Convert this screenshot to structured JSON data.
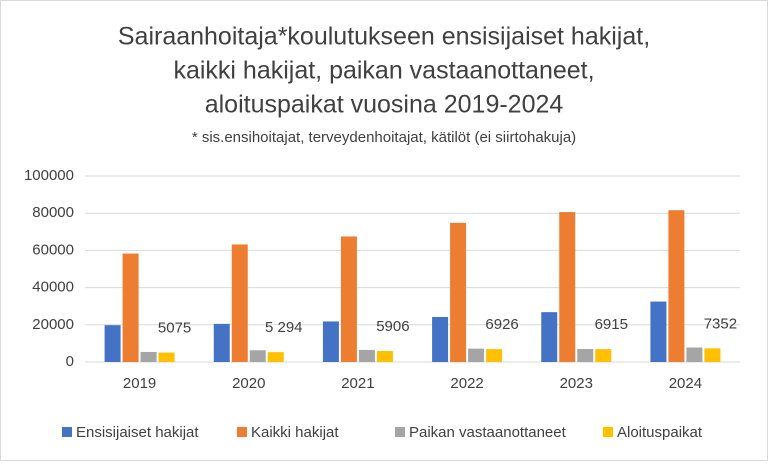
{
  "chart_data": {
    "type": "bar",
    "title": [
      "Sairaanhoitaja*koulutukseen ensisijaiset hakijat,",
      "kaikki hakijat,  paikan vastaanottaneet,",
      "aloituspaikat vuosina 2019-2024"
    ],
    "subtitle": "* sis.ensihoitajat, terveydenhoitajat, kätilöt (ei siirtohakuja)",
    "categories": [
      "2019",
      "2020",
      "2021",
      "2022",
      "2023",
      "2024"
    ],
    "series": [
      {
        "name": "Ensisijaiset hakijat",
        "color": "#4472c4",
        "values": [
          19800,
          20500,
          21800,
          24200,
          26800,
          32500
        ]
      },
      {
        "name": "Kaikki hakijat",
        "color": "#ed7d31",
        "values": [
          58300,
          63200,
          67500,
          74800,
          80600,
          81600
        ]
      },
      {
        "name": "Paikan vastaanottaneet",
        "color": "#a5a5a5",
        "values": [
          5400,
          6300,
          6500,
          7200,
          7000,
          7800
        ]
      },
      {
        "name": "Aloituspaikat",
        "color": "#ffc000",
        "values": [
          5075,
          5294,
          5906,
          6926,
          6915,
          7352
        ],
        "value_labels": [
          "5075",
          "5 294",
          "5906",
          "6926",
          "6915",
          "7352"
        ]
      }
    ],
    "ylim": [
      0,
      100000
    ],
    "yticks": [
      0,
      20000,
      40000,
      60000,
      80000,
      100000
    ],
    "grid": true,
    "legend": "bottom"
  }
}
